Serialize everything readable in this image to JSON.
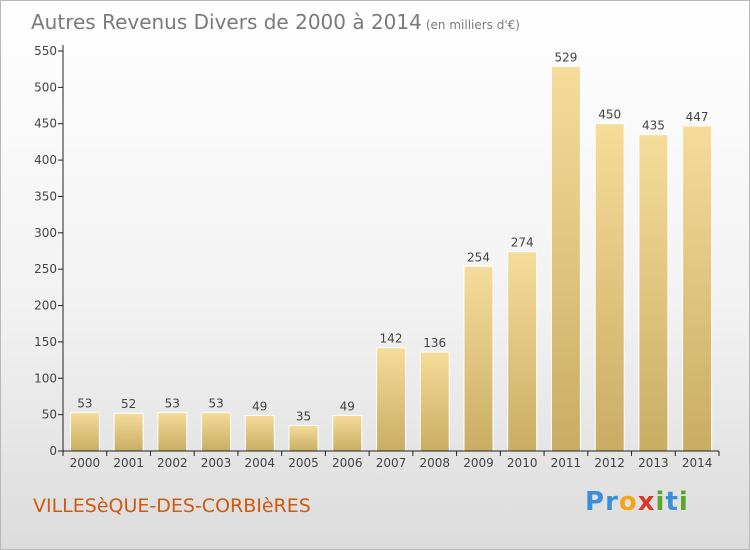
{
  "title": "Autres Revenus Divers de 2000 à 2014",
  "subtitle": "(en milliers d'€)",
  "commune": "VILLESèQUE-DES-CORBIèRES",
  "logo": {
    "letters": [
      {
        "char": "P",
        "color": "#3a8fd8"
      },
      {
        "char": "r",
        "color": "#3a8fd8"
      },
      {
        "char": "o",
        "color": "#f2a51a"
      },
      {
        "char": "x",
        "color": "#d83a2a"
      },
      {
        "char": "i",
        "color": "#5aa52a"
      },
      {
        "char": "t",
        "color": "#3a8fd8"
      },
      {
        "char": "i",
        "color": "#5aa52a"
      }
    ]
  },
  "colors": {
    "bar_light": "#f5dc9a",
    "bar_dark": "#c9ad63",
    "axis": "#222222",
    "grid": "#cccccc",
    "title": "#7a7a7a",
    "commune": "#cf5a10"
  },
  "chart_data": {
    "type": "bar",
    "categories": [
      "2000",
      "2001",
      "2002",
      "2003",
      "2004",
      "2005",
      "2006",
      "2007",
      "2008",
      "2009",
      "2010",
      "2011",
      "2012",
      "2013",
      "2014"
    ],
    "values": [
      53,
      52,
      53,
      53,
      49,
      35,
      49,
      142,
      136,
      254,
      274,
      529,
      450,
      435,
      447
    ],
    "title": "Autres Revenus Divers de 2000 à 2014",
    "subtitle": "(en milliers d'€)",
    "xlabel": "",
    "ylabel": "",
    "ylim": [
      0,
      550
    ],
    "yticks": [
      0,
      50,
      100,
      150,
      200,
      250,
      300,
      350,
      400,
      450,
      500,
      550
    ],
    "data_labels": true,
    "grid": false
  }
}
